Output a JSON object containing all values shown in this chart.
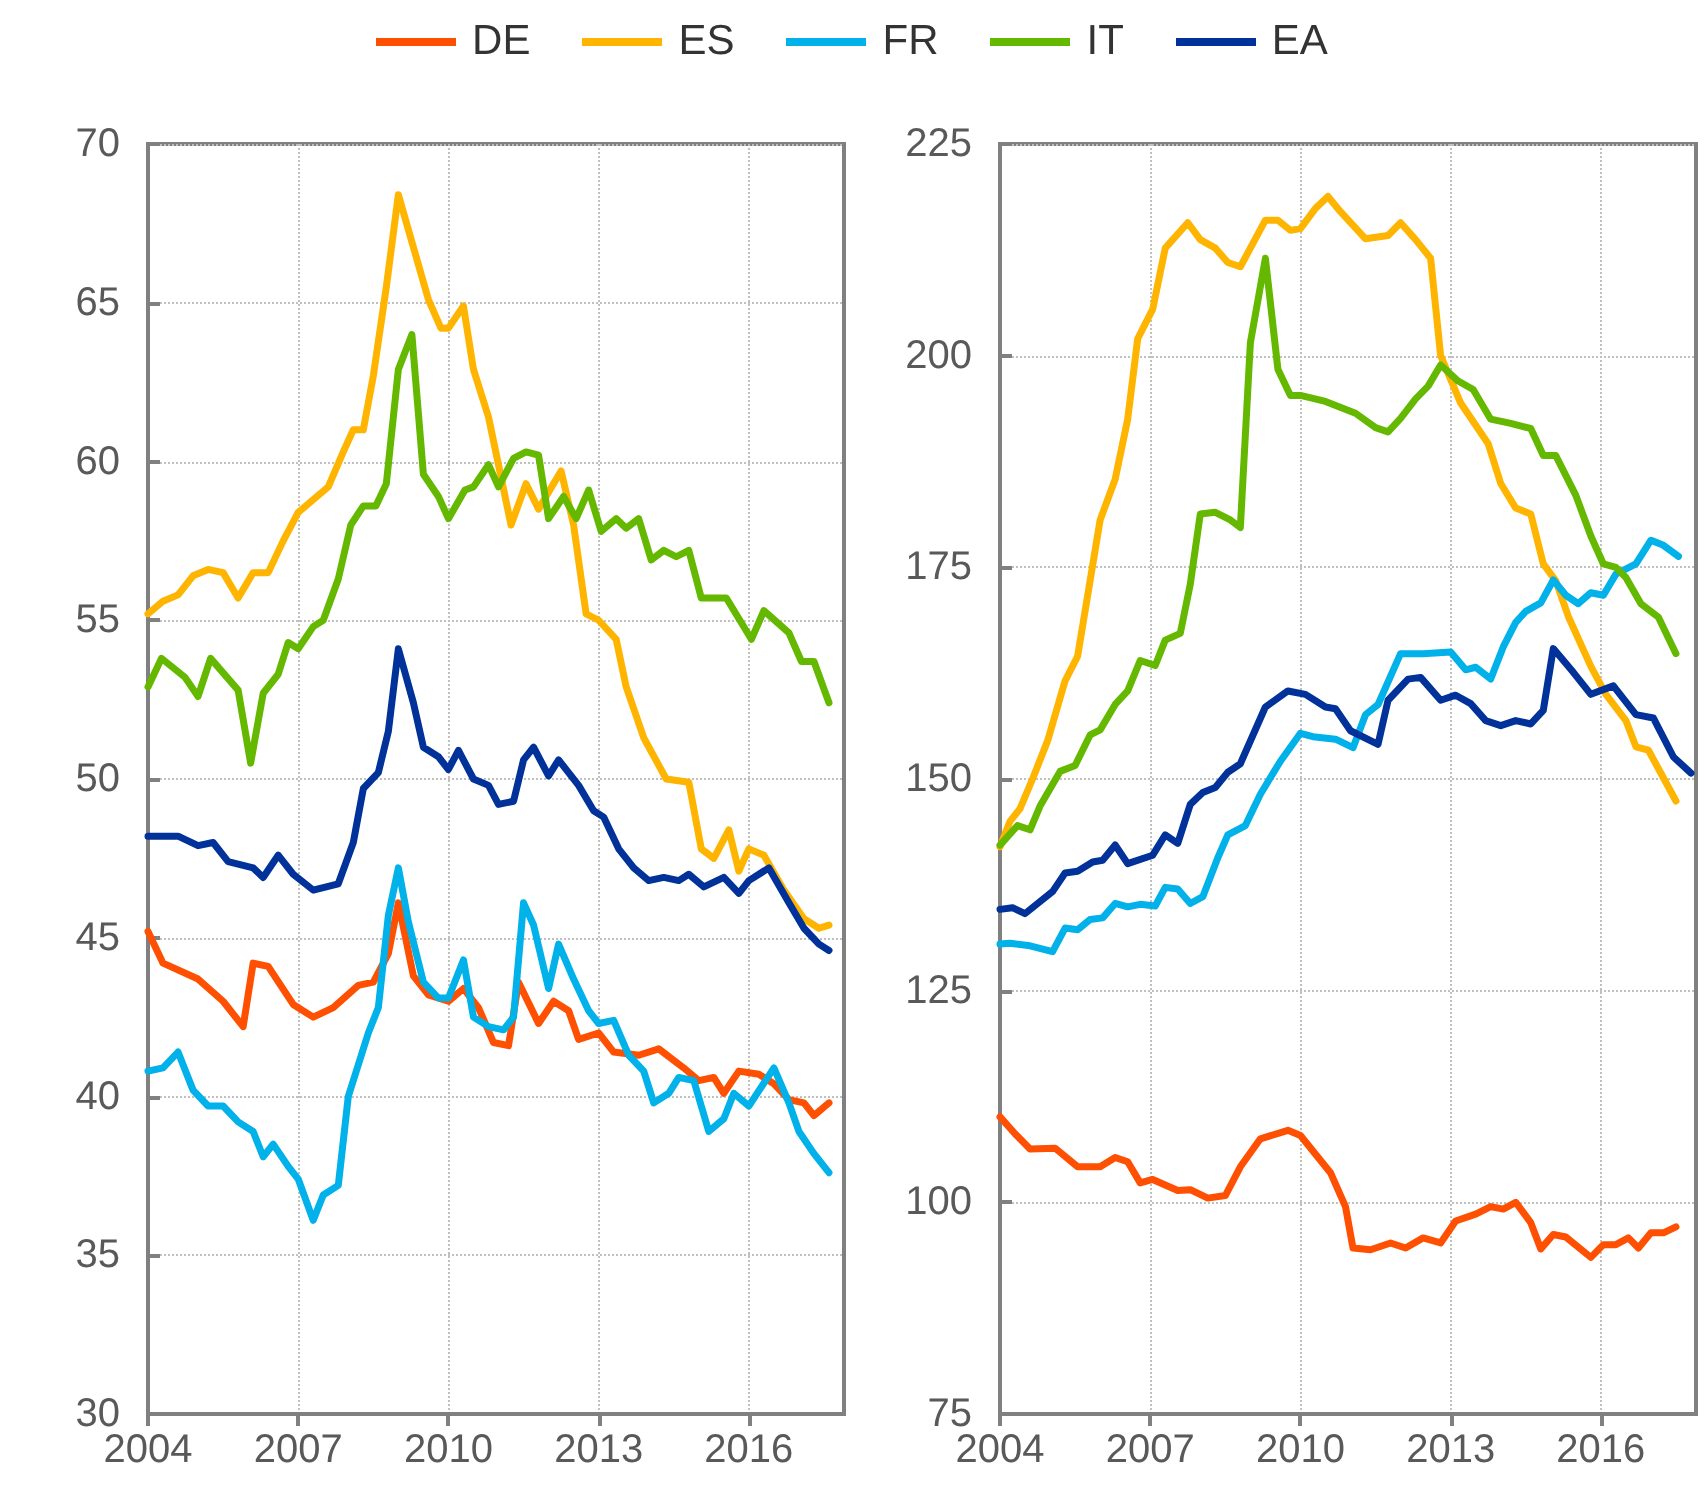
{
  "chart_data": [
    {
      "type": "line",
      "legend": "top",
      "grid": true,
      "line_style": "solid",
      "marker": "none",
      "xlim": [
        2004,
        2017.9
      ],
      "xticks": [
        2004,
        2007,
        2010,
        2013,
        2016
      ],
      "ylim": [
        30,
        70
      ],
      "yticks": [
        30,
        35,
        40,
        45,
        50,
        55,
        60,
        65,
        70
      ],
      "series": [
        {
          "name": "DE",
          "color": "#ff4f00",
          "x": [
            2004,
            2004.3,
            2005,
            2005.5,
            2005.9,
            2006.1,
            2006.4,
            2006.9,
            2007.3,
            2007.7,
            2008.2,
            2008.5,
            2008.8,
            2009,
            2009.3,
            2009.6,
            2010,
            2010.3,
            2010.6,
            2010.9,
            2011.2,
            2011.4,
            2011.8,
            2012.1,
            2012.4,
            2012.6,
            2013,
            2013.3,
            2013.8,
            2014.2,
            2014.7,
            2015,
            2015.3,
            2015.5,
            2015.8,
            2016.2,
            2016.5,
            2016.8,
            2017.1,
            2017.3,
            2017.6
          ],
          "values": [
            45.2,
            44.2,
            43.7,
            43,
            42.2,
            44.2,
            44.1,
            42.9,
            42.5,
            42.8,
            43.5,
            43.6,
            44.5,
            46.1,
            43.8,
            43.2,
            43,
            43.4,
            42.8,
            41.7,
            41.6,
            43.6,
            42.3,
            43,
            42.7,
            41.8,
            42,
            41.4,
            41.3,
            41.5,
            40.9,
            40.5,
            40.6,
            40.1,
            40.8,
            40.7,
            40.4,
            39.9,
            39.8,
            39.4,
            39.8
          ]
        },
        {
          "name": "ES",
          "color": "#ffb400",
          "x": [
            2004,
            2004.3,
            2004.6,
            2004.9,
            2005.2,
            2005.5,
            2005.8,
            2006.1,
            2006.4,
            2006.7,
            2007,
            2007.3,
            2007.6,
            2007.9,
            2008.1,
            2008.3,
            2008.5,
            2008.76,
            2009,
            2009.6,
            2009.85,
            2010,
            2010.3,
            2010.5,
            2010.8,
            2011.25,
            2011.55,
            2011.8,
            2012.25,
            2012.5,
            2012.75,
            2013,
            2013.35,
            2013.55,
            2013.9,
            2014.35,
            2014.8,
            2015.05,
            2015.3,
            2015.6,
            2015.8,
            2016,
            2016.3,
            2016.7,
            2017.1,
            2017.4,
            2017.6
          ],
          "values": [
            55.2,
            55.6,
            55.8,
            56.4,
            56.6,
            56.5,
            55.7,
            56.5,
            56.5,
            57.5,
            58.4,
            58.8,
            59.2,
            60.3,
            61,
            61,
            62.7,
            65.5,
            68.4,
            65.1,
            64.2,
            64.2,
            64.9,
            62.9,
            61.4,
            58,
            59.3,
            58.5,
            59.7,
            58,
            55.2,
            55,
            54.4,
            52.9,
            51.3,
            50,
            49.9,
            47.8,
            47.5,
            48.4,
            47.1,
            47.8,
            47.6,
            46.5,
            45.6,
            45.3,
            45.4
          ]
        },
        {
          "name": "FR",
          "color": "#00b1ea",
          "x": [
            2004,
            2004.3,
            2004.6,
            2004.9,
            2005.2,
            2005.5,
            2005.8,
            2006.1,
            2006.3,
            2006.5,
            2006.8,
            2007,
            2007.3,
            2007.5,
            2007.8,
            2008,
            2008.4,
            2008.6,
            2008.8,
            2009,
            2009.2,
            2009.5,
            2009.8,
            2010,
            2010.3,
            2010.5,
            2010.8,
            2011.1,
            2011.3,
            2011.5,
            2011.7,
            2012,
            2012.2,
            2012.5,
            2012.8,
            2013,
            2013.3,
            2013.6,
            2013.9,
            2014.1,
            2014.4,
            2014.6,
            2014.9,
            2015.2,
            2015.5,
            2015.7,
            2016,
            2016.5,
            2016.8,
            2017,
            2017.3,
            2017.6
          ],
          "values": [
            40.8,
            40.9,
            41.4,
            40.2,
            39.7,
            39.7,
            39.2,
            38.9,
            38.1,
            38.5,
            37.8,
            37.4,
            36.1,
            36.9,
            37.2,
            40,
            42,
            42.8,
            45.7,
            47.2,
            45.5,
            43.6,
            43.1,
            43.1,
            44.3,
            42.5,
            42.2,
            42.1,
            42.5,
            46.1,
            45.4,
            43.4,
            44.8,
            43.7,
            42.7,
            42.3,
            42.4,
            41.3,
            40.8,
            39.8,
            40.1,
            40.6,
            40.5,
            38.9,
            39.3,
            40.1,
            39.7,
            40.9,
            39.8,
            38.9,
            38.2,
            37.6
          ]
        },
        {
          "name": "IT",
          "color": "#65b800",
          "x": [
            2004,
            2004.27,
            2004.74,
            2005,
            2005.25,
            2005.8,
            2006.05,
            2006.3,
            2006.6,
            2006.8,
            2007,
            2007.3,
            2007.5,
            2007.8,
            2008.05,
            2008.3,
            2008.55,
            2008.76,
            2009,
            2009.27,
            2009.5,
            2009.8,
            2010,
            2010.33,
            2010.5,
            2010.8,
            2011,
            2011.3,
            2011.55,
            2011.8,
            2012,
            2012.3,
            2012.55,
            2012.8,
            2013.05,
            2013.35,
            2013.55,
            2013.8,
            2014.05,
            2014.3,
            2014.55,
            2014.8,
            2015.05,
            2015.55,
            2016.05,
            2016.3,
            2016.8,
            2017.05,
            2017.3,
            2017.6
          ],
          "values": [
            52.9,
            53.8,
            53.2,
            52.6,
            53.8,
            52.8,
            50.5,
            52.7,
            53.3,
            54.3,
            54.1,
            54.8,
            55,
            56.3,
            58,
            58.6,
            58.6,
            59.3,
            62.9,
            64,
            59.6,
            58.9,
            58.2,
            59.1,
            59.2,
            59.9,
            59.2,
            60.1,
            60.3,
            60.2,
            58.2,
            58.9,
            58.2,
            59.1,
            57.8,
            58.2,
            57.9,
            58.2,
            56.9,
            57.2,
            57,
            57.2,
            55.7,
            55.7,
            54.4,
            55.3,
            54.6,
            53.7,
            53.7,
            52.4
          ]
        },
        {
          "name": "EA",
          "color": "#003299",
          "x": [
            2004,
            2004.6,
            2005,
            2005.3,
            2005.6,
            2006.1,
            2006.3,
            2006.6,
            2006.9,
            2007.3,
            2007.8,
            2008.1,
            2008.3,
            2008.6,
            2008.8,
            2009,
            2009.3,
            2009.5,
            2009.8,
            2010,
            2010.2,
            2010.5,
            2010.8,
            2011,
            2011.3,
            2011.5,
            2011.7,
            2012,
            2012.2,
            2012.6,
            2012.9,
            2013.1,
            2013.4,
            2013.7,
            2014,
            2014.3,
            2014.6,
            2014.8,
            2015.1,
            2015.5,
            2015.8,
            2016,
            2016.4,
            2016.8,
            2017.1,
            2017.4,
            2017.6
          ],
          "values": [
            48.2,
            48.2,
            47.9,
            48,
            47.4,
            47.2,
            46.9,
            47.6,
            47,
            46.5,
            46.7,
            48,
            49.7,
            50.2,
            51.5,
            54.1,
            52.4,
            51,
            50.7,
            50.3,
            50.9,
            50,
            49.8,
            49.2,
            49.3,
            50.6,
            51,
            50.1,
            50.6,
            49.8,
            49,
            48.8,
            47.8,
            47.2,
            46.8,
            46.9,
            46.8,
            47,
            46.6,
            46.9,
            46.4,
            46.8,
            47.2,
            46.1,
            45.3,
            44.8,
            44.6
          ]
        }
      ]
    },
    {
      "type": "line",
      "grid": true,
      "line_style": "solid",
      "marker": "none",
      "xlim": [
        2004,
        2017.9
      ],
      "xticks": [
        2004,
        2007,
        2010,
        2013,
        2016
      ],
      "ylim": [
        75,
        225
      ],
      "yticks": [
        75,
        100,
        125,
        150,
        175,
        200,
        225
      ],
      "series": [
        {
          "color": "#ff4f00",
          "x": [
            2004,
            2004.3,
            2004.6,
            2005.1,
            2005.55,
            2006,
            2006.3,
            2006.55,
            2006.8,
            2007.05,
            2007.55,
            2007.8,
            2008.15,
            2008.5,
            2008.8,
            2009.2,
            2009.75,
            2010,
            2010.6,
            2010.9,
            2011.05,
            2011.4,
            2011.8,
            2012.1,
            2012.45,
            2012.8,
            2013.1,
            2013.5,
            2013.8,
            2014.05,
            2014.3,
            2014.6,
            2014.8,
            2015.05,
            2015.3,
            2015.8,
            2016.05,
            2016.3,
            2016.55,
            2016.75,
            2017,
            2017.25,
            2017.5
          ],
          "values": [
            110.1,
            108.1,
            106.3,
            106.4,
            104.2,
            104.2,
            105.3,
            104.8,
            102.3,
            102.7,
            101.4,
            101.5,
            100.5,
            100.8,
            104.2,
            107.5,
            108.5,
            107.9,
            103.5,
            99.5,
            94.6,
            94.4,
            95.2,
            94.6,
            95.8,
            95.2,
            97.8,
            98.6,
            99.5,
            99.2,
            100,
            97.6,
            94.5,
            96.2,
            95.9,
            93.5,
            95,
            95,
            95.8,
            94.6,
            96.4,
            96.4,
            97.1
          ]
        },
        {
          "color": "#ffb400",
          "x": [
            2004,
            2004.2,
            2004.4,
            2004.65,
            2004.95,
            2005.3,
            2005.55,
            2006,
            2006.3,
            2006.55,
            2006.75,
            2007.05,
            2007.3,
            2007.75,
            2008,
            2008.3,
            2008.55,
            2008.8,
            2009.3,
            2009.55,
            2009.8,
            2010,
            2010.3,
            2010.55,
            2010.8,
            2011.3,
            2011.75,
            2012,
            2012.3,
            2012.6,
            2012.8,
            2013.2,
            2013.75,
            2014,
            2014.3,
            2014.6,
            2014.85,
            2015.1,
            2015.35,
            2015.8,
            2016.1,
            2016.5,
            2016.7,
            2016.95,
            2017.5
          ],
          "values": [
            142,
            145,
            146.5,
            150,
            154.5,
            161.6,
            164.5,
            180.6,
            185.4,
            192.5,
            202,
            205.5,
            212.7,
            215.7,
            213.7,
            212.7,
            211,
            210.5,
            216,
            216,
            214.8,
            215,
            217.4,
            218.8,
            217,
            213.8,
            214.2,
            215.7,
            213.7,
            211.5,
            200,
            194.4,
            189.6,
            184.9,
            182,
            181.3,
            175.4,
            173.4,
            169.2,
            163.3,
            160,
            156.9,
            153.8,
            153.4,
            147.4
          ]
        },
        {
          "color": "#00b1ea",
          "x": [
            2004,
            2004.2,
            2004.6,
            2005.05,
            2005.3,
            2005.55,
            2005.8,
            2006.05,
            2006.3,
            2006.55,
            2006.8,
            2007.1,
            2007.3,
            2007.55,
            2007.8,
            2008.05,
            2008.35,
            2008.55,
            2008.9,
            2009.2,
            2009.6,
            2010,
            2010.25,
            2010.7,
            2011.05,
            2011.3,
            2011.55,
            2012,
            2012.45,
            2013,
            2013.3,
            2013.5,
            2013.8,
            2014.05,
            2014.3,
            2014.5,
            2014.8,
            2015.05,
            2015.3,
            2015.55,
            2015.8,
            2016.05,
            2016.3,
            2016.7,
            2017,
            2017.25,
            2017.55
          ],
          "values": [
            130.5,
            130.6,
            130.3,
            129.6,
            132.4,
            132.2,
            133.4,
            133.6,
            135.3,
            134.9,
            135.2,
            135,
            137.2,
            137,
            135.3,
            136.1,
            140.7,
            143.4,
            144.5,
            148.2,
            152.1,
            155.4,
            155,
            154.7,
            153.7,
            157.6,
            158.8,
            164.8,
            164.8,
            165,
            162.9,
            163.2,
            161.8,
            165.6,
            168.5,
            169.8,
            170.8,
            173.5,
            171.7,
            170.7,
            172,
            171.7,
            174.2,
            175.4,
            178.2,
            177.6,
            176.3
          ]
        },
        {
          "color": "#65b800",
          "x": [
            2004,
            2004.35,
            2004.6,
            2004.8,
            2005.2,
            2005.5,
            2005.8,
            2006,
            2006.3,
            2006.55,
            2006.8,
            2007.1,
            2007.3,
            2007.6,
            2007.8,
            2008,
            2008.3,
            2008.6,
            2008.8,
            2009,
            2009.3,
            2009.55,
            2009.8,
            2010,
            2010.5,
            2011.1,
            2011.5,
            2011.75,
            2012,
            2012.3,
            2012.55,
            2012.8,
            2013.15,
            2013.45,
            2013.8,
            2014.2,
            2014.6,
            2014.85,
            2015.1,
            2015.5,
            2015.8,
            2016.05,
            2016.3,
            2016.5,
            2016.8,
            2017.15,
            2017.5
          ],
          "values": [
            142.2,
            144.5,
            144,
            146.8,
            150.9,
            151.6,
            155.2,
            155.8,
            158.8,
            160.4,
            164,
            163.4,
            166.4,
            167.2,
            173,
            181.3,
            181.5,
            180.6,
            179.7,
            201.5,
            211.5,
            198.4,
            195.3,
            195.3,
            194.6,
            193.2,
            191.5,
            191,
            192.6,
            194.9,
            196.4,
            198.9,
            197,
            196,
            192.5,
            192,
            191.4,
            188.2,
            188.2,
            183.5,
            178.7,
            175.4,
            175,
            173.8,
            170.7,
            169.1,
            164.8
          ]
        },
        {
          "color": "#003299",
          "x": [
            2004,
            2004.25,
            2004.5,
            2005.05,
            2005.3,
            2005.55,
            2005.85,
            2006.05,
            2006.3,
            2006.55,
            2007.05,
            2007.3,
            2007.55,
            2007.8,
            2008.05,
            2008.3,
            2008.55,
            2008.8,
            2009.3,
            2009.75,
            2010.1,
            2010.5,
            2010.7,
            2011,
            2011.55,
            2011.75,
            2012.15,
            2012.4,
            2012.8,
            2013.1,
            2013.4,
            2013.7,
            2014,
            2014.3,
            2014.6,
            2014.85,
            2015.05,
            2015.45,
            2015.8,
            2016.25,
            2016.7,
            2017.05,
            2017.45,
            2017.8
          ],
          "values": [
            134.6,
            134.8,
            134.1,
            136.7,
            138.9,
            139.1,
            140.2,
            140.4,
            142.2,
            140,
            141,
            143.4,
            142.4,
            147,
            148.4,
            149,
            150.8,
            151.8,
            158.5,
            160.4,
            160,
            158.5,
            158.3,
            155.7,
            154.1,
            159.3,
            161.8,
            162,
            159.3,
            159.9,
            158.9,
            156.9,
            156.3,
            156.9,
            156.5,
            158.1,
            165.4,
            162.6,
            160,
            161,
            157.6,
            157.2,
            152.6,
            150.7
          ]
        }
      ]
    }
  ]
}
